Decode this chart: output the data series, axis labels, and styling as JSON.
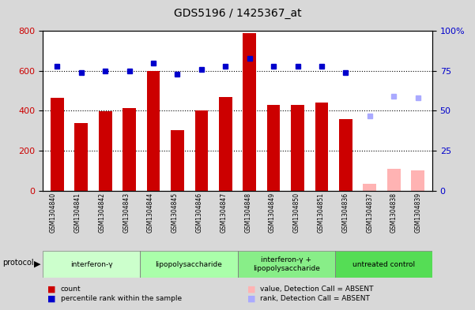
{
  "title": "GDS5196 / 1425367_at",
  "samples": [
    "GSM1304840",
    "GSM1304841",
    "GSM1304842",
    "GSM1304843",
    "GSM1304844",
    "GSM1304845",
    "GSM1304846",
    "GSM1304847",
    "GSM1304848",
    "GSM1304849",
    "GSM1304850",
    "GSM1304851",
    "GSM1304836",
    "GSM1304837",
    "GSM1304838",
    "GSM1304839"
  ],
  "count_values": [
    465,
    340,
    397,
    413,
    600,
    305,
    400,
    470,
    790,
    430,
    430,
    443,
    360,
    35,
    110,
    100
  ],
  "count_present": [
    true,
    true,
    true,
    true,
    true,
    true,
    true,
    true,
    true,
    true,
    true,
    true,
    true,
    false,
    false,
    false
  ],
  "percentile_values": [
    78,
    74,
    75,
    75,
    80,
    73,
    76,
    78,
    83,
    78,
    78,
    78,
    74,
    47,
    59,
    58
  ],
  "percentile_present": [
    true,
    true,
    true,
    true,
    true,
    true,
    true,
    true,
    true,
    true,
    true,
    true,
    true,
    false,
    false,
    false
  ],
  "groups": [
    {
      "label": "interferon-γ",
      "start": 0,
      "end": 3,
      "color": "#ccffcc"
    },
    {
      "label": "lipopolysaccharide",
      "start": 4,
      "end": 7,
      "color": "#aaffaa"
    },
    {
      "label": "interferon-γ +\nlipopolysaccharide",
      "start": 8,
      "end": 11,
      "color": "#88ee88"
    },
    {
      "label": "untreated control",
      "start": 12,
      "end": 15,
      "color": "#55dd55"
    }
  ],
  "bar_color_present": "#cc0000",
  "bar_color_absent": "#ffb3b3",
  "dot_color_present": "#0000cc",
  "dot_color_absent": "#aaaaff",
  "ylim_left": [
    0,
    800
  ],
  "ylim_right": [
    0,
    100
  ],
  "yticks_left": [
    0,
    200,
    400,
    600,
    800
  ],
  "yticks_right": [
    0,
    25,
    50,
    75,
    100
  ],
  "legend_items": [
    {
      "label": "count",
      "color": "#cc0000"
    },
    {
      "label": "percentile rank within the sample",
      "color": "#0000cc"
    },
    {
      "label": "value, Detection Call = ABSENT",
      "color": "#ffb3b3"
    },
    {
      "label": "rank, Detection Call = ABSENT",
      "color": "#aaaaff"
    }
  ],
  "bg_color": "#d8d8d8",
  "plot_bg_color": "#ffffff"
}
